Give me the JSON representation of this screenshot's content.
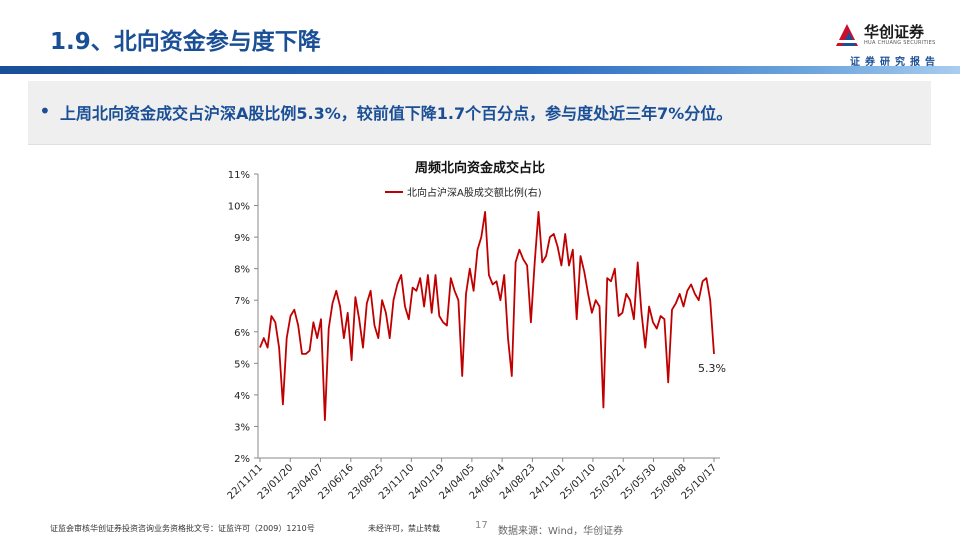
{
  "header": {
    "title": "1.9、北向资金参与度下降",
    "logo_cn": "华创证券",
    "logo_en": "HUA CHUANG SECURITIES",
    "subtitle": "证券研究报告",
    "accent": "#1a4f96"
  },
  "bullet": {
    "text": "上周北向资金成交占沪深A股比例5.3%，较前值下降1.7个百分点，参与度处近三年7%分位。"
  },
  "chart_data": {
    "type": "line",
    "title": "周频北向资金成交占比",
    "legend": "北向占沪深A股成交额比例(右)",
    "y_ticks": [
      "2%",
      "3%",
      "4%",
      "5%",
      "6%",
      "7%",
      "8%",
      "9%",
      "10%",
      "11%"
    ],
    "ylim": [
      2,
      11
    ],
    "x_ticks": [
      "22/11/11",
      "23/01/20",
      "23/04/07",
      "23/06/16",
      "23/08/25",
      "23/11/10",
      "24/01/19",
      "24/04/05",
      "24/06/14",
      "24/08/23",
      "24/11/01",
      "25/01/10",
      "25/03/21",
      "25/05/30",
      "25/08/08",
      "25/10/17"
    ],
    "last_label": "5.3%",
    "series": [
      {
        "name": "北向占沪深A股成交额比例(右)",
        "color": "#c00000",
        "values": [
          5.5,
          5.8,
          5.5,
          6.5,
          6.3,
          5.5,
          3.7,
          5.8,
          6.5,
          6.7,
          6.2,
          5.3,
          5.3,
          5.4,
          6.3,
          5.8,
          6.4,
          3.2,
          6.1,
          6.9,
          7.3,
          6.8,
          5.8,
          6.6,
          5.1,
          7.1,
          6.4,
          5.5,
          6.9,
          7.3,
          6.2,
          5.8,
          7.0,
          6.6,
          5.8,
          7.0,
          7.5,
          7.8,
          6.8,
          6.4,
          7.4,
          7.3,
          7.7,
          6.8,
          7.8,
          6.6,
          7.8,
          6.5,
          6.3,
          6.2,
          7.7,
          7.3,
          7.0,
          4.6,
          7.2,
          8.0,
          7.3,
          8.6,
          9.0,
          9.8,
          7.8,
          7.5,
          7.6,
          7.0,
          7.8,
          5.8,
          4.6,
          8.2,
          8.6,
          8.3,
          8.1,
          6.3,
          8.2,
          9.8,
          8.2,
          8.4,
          9.0,
          9.1,
          8.7,
          8.1,
          9.1,
          8.1,
          8.6,
          6.4,
          8.4,
          7.9,
          7.2,
          6.6,
          7.0,
          6.8,
          3.6,
          7.7,
          7.6,
          8.0,
          6.5,
          6.6,
          7.2,
          7.0,
          6.4,
          8.2,
          6.6,
          5.5,
          6.8,
          6.3,
          6.1,
          6.5,
          6.4,
          4.4,
          6.7,
          6.9,
          7.2,
          6.8,
          7.3,
          7.5,
          7.2,
          7.0,
          7.6,
          7.7,
          7.0,
          5.3
        ]
      }
    ]
  },
  "footer": {
    "license": "证监会审核华创证券投资咨询业务资格批文号：证监许可（2009）1210号",
    "notice": "未经许可，禁止转载",
    "page": "17",
    "source": "数据来源：Wind，华创证券"
  }
}
